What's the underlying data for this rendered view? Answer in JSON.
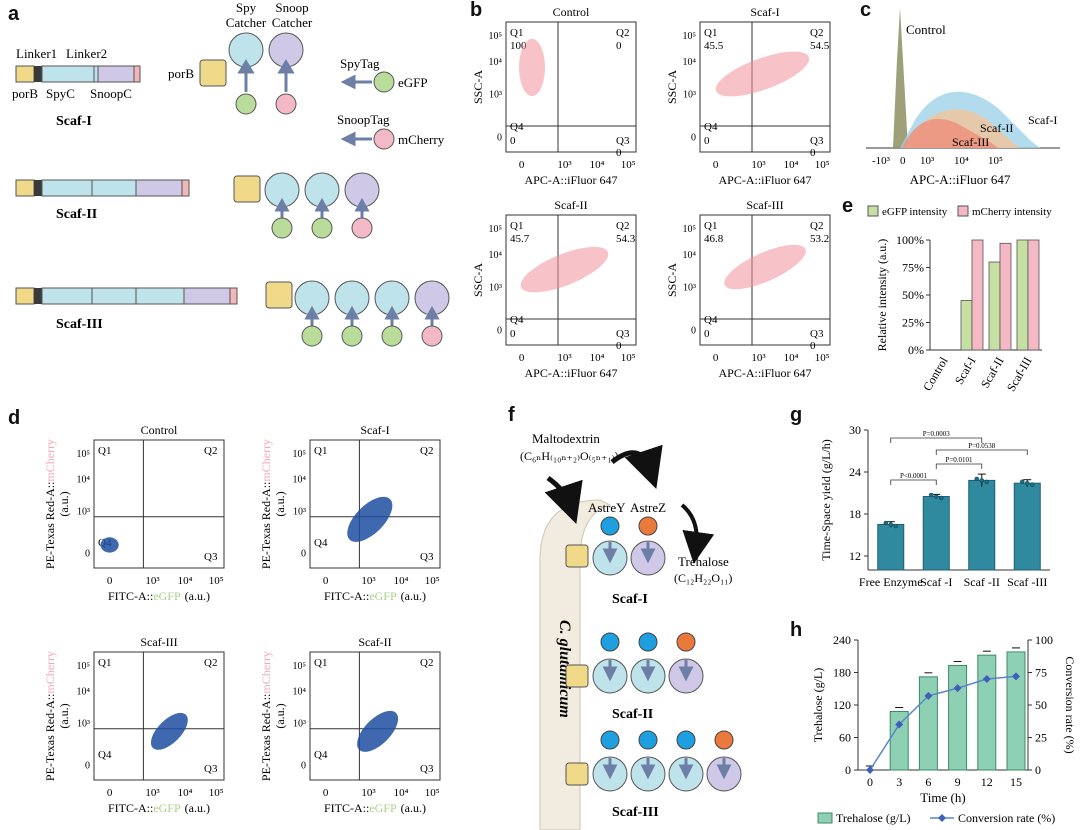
{
  "panel_labels": [
    "a",
    "b",
    "c",
    "d",
    "e",
    "f",
    "g",
    "h"
  ],
  "panel_a": {
    "linker1": "Linker1",
    "linker2": "Linker2",
    "seg_porb": "porB",
    "seg_spyc": "SpyC",
    "seg_snoopc": "SnoopC",
    "spy_catcher": [
      "Spy",
      "Catcher"
    ],
    "snoop_catcher": [
      "Snoop",
      "Catcher"
    ],
    "porb": "porB",
    "spytag": "SpyTag",
    "egfp": "eGFP",
    "snooptag": "SnoopTag",
    "mcherry": "mCherry",
    "scaf1": "Scaf-I",
    "scaf2": "Scaf-II",
    "scaf3": "Scaf-III",
    "colors": {
      "porB": "#f1d98a",
      "linker": "#3a3a3a",
      "spyc": "#bfe3ea",
      "snoopc": "#cfc8e6",
      "end": "#f4b7b7",
      "green": "#b9dc9a",
      "pink": "#f4b9c6",
      "arrow": "#6d7fa6"
    }
  },
  "panel_b": {
    "ylabel": "SSC-A",
    "xlabel": "APC-A::iFluor 647",
    "ticks_x": [
      "0",
      "10³",
      "10⁴",
      "10⁵"
    ],
    "ticks_y": [
      "10⁵",
      "10⁴",
      "10³",
      "0"
    ],
    "plots": [
      {
        "title": "Control",
        "q1": "Q1",
        "q1v": "100",
        "q2": "Q2",
        "q2v": "0",
        "q3": "Q3",
        "q3v": "0",
        "q4": "Q4",
        "q4v": "0"
      },
      {
        "title": "Scaf-I",
        "q1": "Q1",
        "q1v": "45.5",
        "q2": "Q2",
        "q2v": "54.5",
        "q3": "Q3",
        "q3v": "0",
        "q4": "Q4",
        "q4v": "0"
      },
      {
        "title": "Scaf-II",
        "q1": "Q1",
        "q1v": "45.7",
        "q2": "Q2",
        "q2v": "54.3",
        "q3": "Q3",
        "q3v": "0",
        "q4": "Q4",
        "q4v": "0"
      },
      {
        "title": "Scaf-III",
        "q1": "Q1",
        "q1v": "46.8",
        "q2": "Q2",
        "q2v": "53.2",
        "q3": "Q3",
        "q3v": "0",
        "q4": "Q4",
        "q4v": "0"
      }
    ]
  },
  "panel_c": {
    "control": "Control",
    "scaf1": "Scaf-I",
    "scaf2": "Scaf-II",
    "scaf3": "Scaf-III",
    "xlabel": "APC-A::iFluor 647",
    "ticks": [
      "-10³",
      "0",
      "10³",
      "10⁴",
      "10⁵"
    ]
  },
  "panel_d": {
    "ylabel_prefix": "PE-Texas Red-A::",
    "ylabel_colored": "mCherry",
    "ylabel_unit": "(a.u.)",
    "xlabel_prefix": "FITC-A::",
    "xlabel_colored": "eGFP",
    "xlabel_unit": "(a.u.)",
    "ticks_x": [
      "0",
      "10³",
      "10⁴",
      "10⁵"
    ],
    "ticks_y": [
      "10⁵",
      "10⁴",
      "10³",
      "0"
    ],
    "plots": [
      {
        "title": "Control",
        "q1": "Q1",
        "q2": "Q2",
        "q3": "Q3",
        "q4": "Q4"
      },
      {
        "title": "Scaf-I",
        "q1": "Q1",
        "q2": "Q2",
        "q3": "Q3",
        "q4": "Q4"
      },
      {
        "title": "Scaf-III",
        "q1": "Q1",
        "q2": "Q2",
        "q3": "Q3",
        "q4": "Q4"
      },
      {
        "title": "Scaf-II",
        "q1": "Q1",
        "q2": "Q2",
        "q3": "Q3",
        "q4": "Q4"
      }
    ]
  },
  "panel_f": {
    "maltodextrin": "Maltodextrin",
    "malto_formula": "(C₆ₙH₍₁₀ₙ₊₂₎O₍₅ₙ₊₁₎)",
    "astrey": "AstreY",
    "astrez": "AstreZ",
    "trehalose": "Trehalose",
    "treh_formula": "(C₁₂H₂₂O₁₁)",
    "organism": "C. glutamicum",
    "scaf1": "Scaf-I",
    "scaf2": "Scaf-II",
    "scaf3": "Scaf-III"
  },
  "chart_data": [
    {
      "type": "bar",
      "panel": "e",
      "title": "",
      "categories": [
        "Control",
        "Scaf-I",
        "Scaf-II",
        "Scaf-III"
      ],
      "series": [
        {
          "name": "eGFP intensity",
          "color": "#c6dfa2",
          "values": [
            0,
            45,
            80,
            100
          ]
        },
        {
          "name": "mCherry intensity",
          "color": "#f4b9c4",
          "values": [
            0,
            100,
            97,
            100
          ]
        }
      ],
      "ylabel": "Relative intensity (a.u.)",
      "yticks": [
        "0%",
        "25%",
        "50%",
        "75%",
        "100%"
      ],
      "ylim": [
        0,
        100
      ]
    },
    {
      "type": "bar",
      "panel": "g",
      "categories": [
        "Free Enzyme",
        "Scaf -I",
        "Scaf -II",
        "Scaf -III"
      ],
      "values": [
        16.5,
        20.5,
        22.8,
        22.4
      ],
      "errors": [
        0.4,
        0.3,
        0.9,
        0.5
      ],
      "color": "#2f8aa0",
      "ylabel": "Time-Space yield (g/L/h)",
      "ylim": [
        10,
        30
      ],
      "yticks": [
        "12",
        "18",
        "24",
        "30"
      ],
      "annotations": [
        "P<0.0001",
        "P=0.0101",
        "P=0.0538",
        "P=0.0003"
      ]
    },
    {
      "type": "bar+line",
      "panel": "h",
      "x": [
        0,
        3,
        6,
        9,
        12,
        15
      ],
      "xticks": [
        "0",
        "3",
        "6",
        "9",
        "12",
        "15"
      ],
      "series": [
        {
          "name": "Trehalose (g/L)",
          "axis": "left",
          "color": "#8ed0b4",
          "values": [
            0,
            108,
            172,
            193,
            212,
            218
          ]
        },
        {
          "name": "Conversion rate (%)",
          "axis": "right",
          "color": "#3f5fb8",
          "values": [
            0,
            35,
            57,
            63,
            70,
            72
          ]
        }
      ],
      "xlabel": "Time (h)",
      "ylabel": "Trehalose (g/L)",
      "ylabel_right": "Conversion rate (%)",
      "ylim": [
        0,
        240
      ],
      "ylim_right": [
        0,
        100
      ],
      "yticks": [
        "0",
        "60",
        "120",
        "180",
        "240"
      ],
      "yticks_right": [
        "0",
        "25",
        "50",
        "75",
        "100"
      ]
    }
  ]
}
